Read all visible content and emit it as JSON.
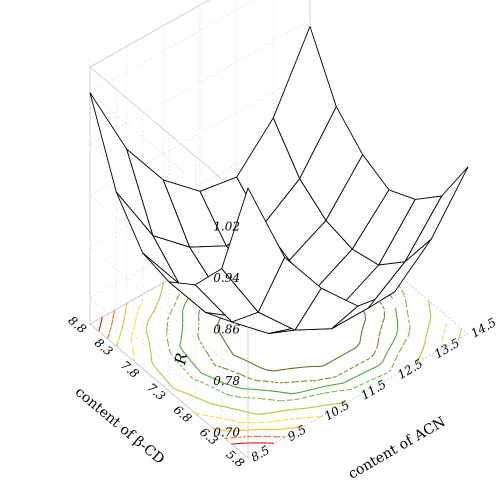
{
  "chart_data": {
    "type": "surface",
    "zlabel": "R",
    "xlabel": "content of ACN",
    "ylabel": "content of β-CD",
    "x_ticks": [
      "8.5",
      "9.5",
      "10.5",
      "11.5",
      "12.5",
      "13.5",
      "14.5"
    ],
    "y_ticks": [
      "5.8",
      "6.3",
      "6.8",
      "7.3",
      "7.8",
      "8.3",
      "8.8"
    ],
    "z_ticks": [
      "0.70",
      "0.78",
      "0.86",
      "0.94",
      "1.02"
    ],
    "zlim": [
      0.66,
      1.06
    ],
    "x": [
      8.5,
      9.5,
      10.5,
      11.5,
      12.5,
      13.5,
      14.5
    ],
    "y": [
      5.8,
      6.3,
      6.8,
      7.3,
      7.8,
      8.3,
      8.8
    ],
    "z_grid": [
      [
        1.08,
        0.94,
        0.86,
        0.8,
        0.79,
        0.84,
        0.92
      ],
      [
        0.92,
        0.82,
        0.76,
        0.73,
        0.73,
        0.77,
        0.84
      ],
      [
        0.86,
        0.77,
        0.72,
        0.7,
        0.7,
        0.73,
        0.8
      ],
      [
        0.83,
        0.75,
        0.71,
        0.69,
        0.69,
        0.72,
        0.78
      ],
      [
        0.84,
        0.76,
        0.72,
        0.7,
        0.7,
        0.73,
        0.8
      ],
      [
        0.9,
        0.8,
        0.75,
        0.72,
        0.72,
        0.76,
        0.84
      ],
      [
        1.02,
        0.9,
        0.82,
        0.77,
        0.76,
        0.82,
        0.93
      ]
    ],
    "contours": [
      0.72,
      0.74,
      0.76,
      0.78,
      0.82,
      0.86,
      0.9,
      0.94,
      0.98
    ],
    "contour_colors": [
      "#7a6a2a",
      "#6f8f2a",
      "#56a63a",
      "#7ab84a",
      "#b5c83a",
      "#f1e040",
      "#f0c030",
      "#e86a2a",
      "#d01818"
    ],
    "grid": true
  }
}
